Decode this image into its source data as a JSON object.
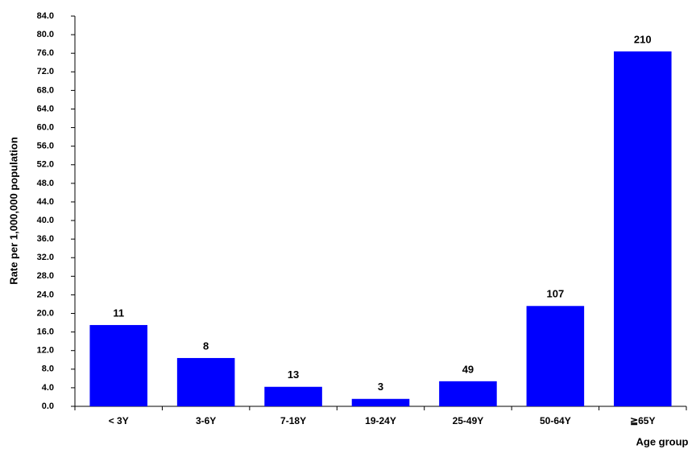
{
  "chart_data": {
    "type": "bar",
    "y_label": "Rate per 1,000,000 population",
    "x_label": "Age group",
    "categories": [
      "< 3Y",
      "3-6Y",
      "7-18Y",
      "19-24Y",
      "25-49Y",
      "50-64Y",
      "≧65Y"
    ],
    "values": [
      17.5,
      10.4,
      4.2,
      1.6,
      5.4,
      21.6,
      76.4
    ],
    "case_counts": [
      11,
      8,
      13,
      3,
      49,
      107,
      210
    ],
    "color": "#0000ff",
    "ylim": [
      0,
      84
    ],
    "yticks": [
      {
        "value": 0,
        "label": "0.0"
      },
      {
        "value": 4,
        "label": "4.0"
      },
      {
        "value": 8,
        "label": "8.0"
      },
      {
        "value": 12,
        "label": "12.0"
      },
      {
        "value": 16,
        "label": "16.0"
      },
      {
        "value": 20,
        "label": "20.0"
      },
      {
        "value": 24,
        "label": "24.0"
      },
      {
        "value": 28,
        "label": "28.0"
      },
      {
        "value": 32,
        "label": "32.0"
      },
      {
        "value": 36,
        "label": "36.0"
      },
      {
        "value": 40,
        "label": "40.0"
      },
      {
        "value": 44,
        "label": "44.0"
      },
      {
        "value": 48,
        "label": "48.0"
      },
      {
        "value": 52,
        "label": "52.0"
      },
      {
        "value": 56,
        "label": "56.0"
      },
      {
        "value": 60,
        "label": "60.0"
      },
      {
        "value": 64,
        "label": "64.0"
      },
      {
        "value": 68,
        "label": "68.0"
      },
      {
        "value": 72,
        "label": "72.0"
      },
      {
        "value": 76,
        "label": "76.0"
      },
      {
        "value": 80,
        "label": "80.0"
      },
      {
        "value": 84,
        "label": "84.0"
      }
    ],
    "grid": false
  }
}
